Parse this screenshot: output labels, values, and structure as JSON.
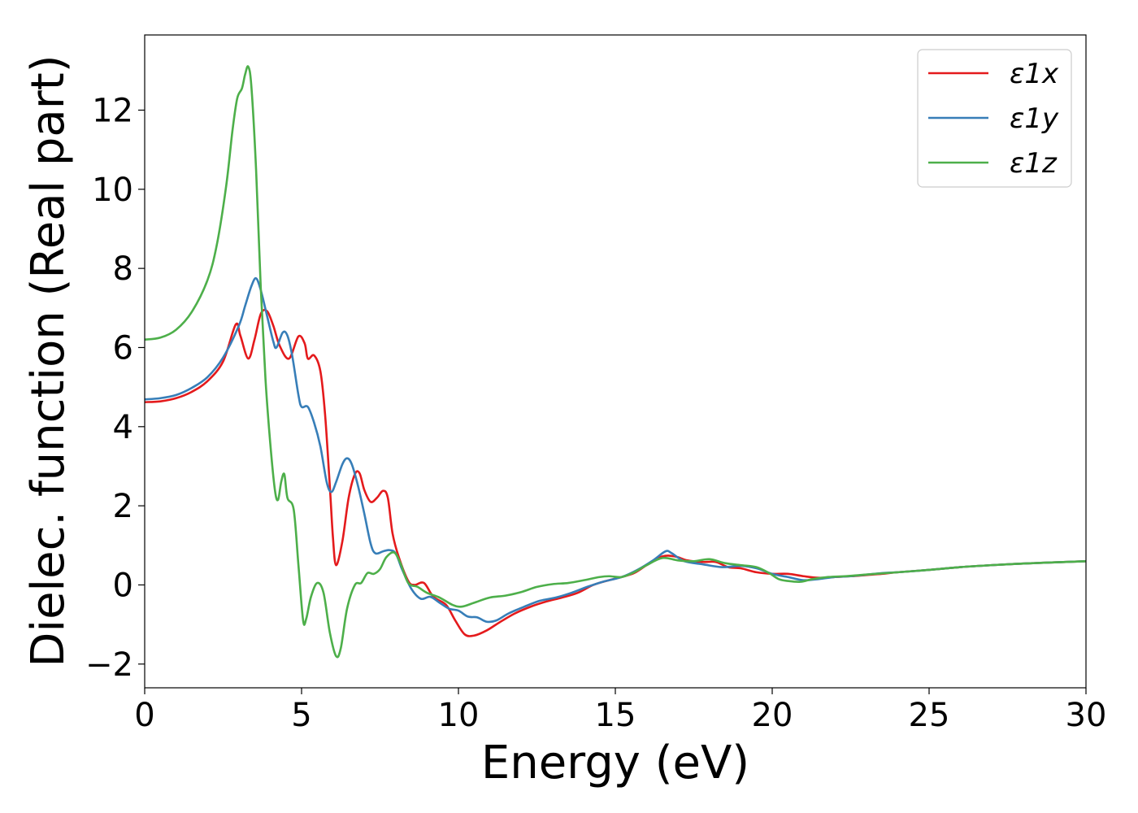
{
  "chart_data": {
    "type": "line",
    "title": "",
    "xlabel": "Energy (eV)",
    "ylabel": "Dielec. function (Real part)",
    "xlim": [
      0,
      30
    ],
    "ylim": [
      -2.6,
      13.9
    ],
    "xticks": [
      0,
      5,
      10,
      15,
      20,
      25,
      30
    ],
    "xtick_labels": [
      "0",
      "5",
      "10",
      "15",
      "20",
      "25",
      "30"
    ],
    "yticks": [
      -2,
      0,
      2,
      4,
      6,
      8,
      10,
      12
    ],
    "ytick_labels": [
      "−2",
      "0",
      "2",
      "4",
      "6",
      "8",
      "10",
      "12"
    ],
    "grid": false,
    "legend_position": "top-right",
    "series": [
      {
        "name": "ε1x",
        "color": "#e41a1c",
        "points": [
          [
            0,
            4.62
          ],
          [
            0.5,
            4.64
          ],
          [
            1.0,
            4.72
          ],
          [
            1.5,
            4.88
          ],
          [
            2.0,
            5.15
          ],
          [
            2.5,
            5.65
          ],
          [
            2.9,
            6.58
          ],
          [
            3.05,
            6.3
          ],
          [
            3.3,
            5.72
          ],
          [
            3.5,
            6.2
          ],
          [
            3.7,
            6.85
          ],
          [
            3.9,
            6.92
          ],
          [
            4.1,
            6.55
          ],
          [
            4.3,
            6.05
          ],
          [
            4.6,
            5.72
          ],
          [
            4.9,
            6.28
          ],
          [
            5.1,
            6.1
          ],
          [
            5.2,
            5.72
          ],
          [
            5.4,
            5.8
          ],
          [
            5.6,
            5.4
          ],
          [
            5.75,
            4.3
          ],
          [
            5.9,
            2.5
          ],
          [
            6.0,
            1.2
          ],
          [
            6.1,
            0.5
          ],
          [
            6.3,
            1.1
          ],
          [
            6.5,
            2.2
          ],
          [
            6.7,
            2.8
          ],
          [
            6.85,
            2.82
          ],
          [
            7.0,
            2.4
          ],
          [
            7.2,
            2.1
          ],
          [
            7.4,
            2.2
          ],
          [
            7.6,
            2.38
          ],
          [
            7.75,
            2.2
          ],
          [
            7.9,
            1.3
          ],
          [
            8.1,
            0.7
          ],
          [
            8.4,
            0.1
          ],
          [
            8.6,
            0.0
          ],
          [
            8.9,
            0.05
          ],
          [
            9.2,
            -0.3
          ],
          [
            9.6,
            -0.5
          ],
          [
            9.9,
            -0.9
          ],
          [
            10.2,
            -1.25
          ],
          [
            10.5,
            -1.28
          ],
          [
            10.9,
            -1.15
          ],
          [
            11.3,
            -0.95
          ],
          [
            11.8,
            -0.72
          ],
          [
            12.3,
            -0.55
          ],
          [
            12.8,
            -0.42
          ],
          [
            13.3,
            -0.32
          ],
          [
            13.8,
            -0.2
          ],
          [
            14.3,
            0.0
          ],
          [
            14.8,
            0.12
          ],
          [
            15.2,
            0.2
          ],
          [
            15.6,
            0.3
          ],
          [
            16.0,
            0.5
          ],
          [
            16.5,
            0.72
          ],
          [
            16.9,
            0.72
          ],
          [
            17.3,
            0.62
          ],
          [
            17.8,
            0.58
          ],
          [
            18.2,
            0.58
          ],
          [
            18.6,
            0.45
          ],
          [
            19.0,
            0.42
          ],
          [
            19.5,
            0.32
          ],
          [
            20.0,
            0.28
          ],
          [
            20.5,
            0.28
          ],
          [
            21.0,
            0.22
          ],
          [
            21.5,
            0.18
          ],
          [
            22.0,
            0.2
          ],
          [
            22.5,
            0.22
          ],
          [
            23.0,
            0.25
          ],
          [
            23.5,
            0.28
          ],
          [
            24.0,
            0.32
          ],
          [
            25.0,
            0.38
          ],
          [
            26.0,
            0.45
          ],
          [
            27.0,
            0.5
          ],
          [
            28.0,
            0.54
          ],
          [
            29.0,
            0.57
          ],
          [
            30.0,
            0.6
          ]
        ]
      },
      {
        "name": "ε1y",
        "color": "#377eb8",
        "points": [
          [
            0,
            4.69
          ],
          [
            0.5,
            4.72
          ],
          [
            1.0,
            4.8
          ],
          [
            1.5,
            4.98
          ],
          [
            2.0,
            5.25
          ],
          [
            2.5,
            5.75
          ],
          [
            3.0,
            6.55
          ],
          [
            3.2,
            7.05
          ],
          [
            3.4,
            7.55
          ],
          [
            3.55,
            7.75
          ],
          [
            3.7,
            7.45
          ],
          [
            3.9,
            6.8
          ],
          [
            4.1,
            6.15
          ],
          [
            4.2,
            6.0
          ],
          [
            4.4,
            6.38
          ],
          [
            4.55,
            6.3
          ],
          [
            4.7,
            5.8
          ],
          [
            4.9,
            4.8
          ],
          [
            5.0,
            4.5
          ],
          [
            5.2,
            4.5
          ],
          [
            5.4,
            4.1
          ],
          [
            5.6,
            3.5
          ],
          [
            5.8,
            2.6
          ],
          [
            5.95,
            2.35
          ],
          [
            6.1,
            2.6
          ],
          [
            6.3,
            3.05
          ],
          [
            6.45,
            3.2
          ],
          [
            6.6,
            3.05
          ],
          [
            6.8,
            2.5
          ],
          [
            7.0,
            1.8
          ],
          [
            7.2,
            1.05
          ],
          [
            7.35,
            0.8
          ],
          [
            7.6,
            0.85
          ],
          [
            7.8,
            0.88
          ],
          [
            8.0,
            0.8
          ],
          [
            8.2,
            0.4
          ],
          [
            8.5,
            -0.1
          ],
          [
            8.8,
            -0.35
          ],
          [
            9.1,
            -0.3
          ],
          [
            9.4,
            -0.45
          ],
          [
            9.7,
            -0.6
          ],
          [
            10.0,
            -0.65
          ],
          [
            10.3,
            -0.8
          ],
          [
            10.6,
            -0.82
          ],
          [
            10.9,
            -0.93
          ],
          [
            11.2,
            -0.9
          ],
          [
            11.6,
            -0.72
          ],
          [
            12.1,
            -0.55
          ],
          [
            12.6,
            -0.4
          ],
          [
            13.1,
            -0.32
          ],
          [
            13.6,
            -0.2
          ],
          [
            14.1,
            -0.05
          ],
          [
            14.6,
            0.08
          ],
          [
            15.2,
            0.2
          ],
          [
            15.7,
            0.38
          ],
          [
            16.2,
            0.62
          ],
          [
            16.6,
            0.85
          ],
          [
            16.8,
            0.8
          ],
          [
            17.2,
            0.6
          ],
          [
            17.8,
            0.52
          ],
          [
            18.4,
            0.45
          ],
          [
            19.0,
            0.48
          ],
          [
            19.5,
            0.42
          ],
          [
            20.0,
            0.28
          ],
          [
            20.5,
            0.2
          ],
          [
            21.0,
            0.12
          ],
          [
            21.5,
            0.15
          ],
          [
            22.0,
            0.2
          ],
          [
            22.5,
            0.22
          ],
          [
            23.0,
            0.26
          ],
          [
            23.5,
            0.3
          ],
          [
            24.0,
            0.32
          ],
          [
            25.0,
            0.38
          ],
          [
            26.0,
            0.45
          ],
          [
            27.0,
            0.5
          ],
          [
            28.0,
            0.54
          ],
          [
            29.0,
            0.57
          ],
          [
            30.0,
            0.6
          ]
        ]
      },
      {
        "name": "ε1z",
        "color": "#4daf4a",
        "points": [
          [
            0,
            6.2
          ],
          [
            0.5,
            6.25
          ],
          [
            1.0,
            6.45
          ],
          [
            1.5,
            6.9
          ],
          [
            2.0,
            7.7
          ],
          [
            2.3,
            8.6
          ],
          [
            2.6,
            10.1
          ],
          [
            2.8,
            11.5
          ],
          [
            2.95,
            12.3
          ],
          [
            3.1,
            12.55
          ],
          [
            3.2,
            12.9
          ],
          [
            3.3,
            13.1
          ],
          [
            3.4,
            12.6
          ],
          [
            3.55,
            10.5
          ],
          [
            3.7,
            7.5
          ],
          [
            3.85,
            5.2
          ],
          [
            4.0,
            3.6
          ],
          [
            4.15,
            2.4
          ],
          [
            4.25,
            2.15
          ],
          [
            4.35,
            2.6
          ],
          [
            4.45,
            2.8
          ],
          [
            4.55,
            2.2
          ],
          [
            4.75,
            1.9
          ],
          [
            4.9,
            0.5
          ],
          [
            5.05,
            -0.9
          ],
          [
            5.15,
            -0.85
          ],
          [
            5.3,
            -0.3
          ],
          [
            5.5,
            0.05
          ],
          [
            5.7,
            -0.2
          ],
          [
            5.9,
            -1.2
          ],
          [
            6.1,
            -1.8
          ],
          [
            6.25,
            -1.6
          ],
          [
            6.45,
            -0.6
          ],
          [
            6.7,
            0.0
          ],
          [
            6.9,
            0.05
          ],
          [
            7.1,
            0.3
          ],
          [
            7.3,
            0.28
          ],
          [
            7.5,
            0.4
          ],
          [
            7.7,
            0.7
          ],
          [
            7.95,
            0.82
          ],
          [
            8.15,
            0.55
          ],
          [
            8.4,
            0.05
          ],
          [
            8.7,
            -0.05
          ],
          [
            9.0,
            -0.2
          ],
          [
            9.4,
            -0.32
          ],
          [
            9.8,
            -0.5
          ],
          [
            10.1,
            -0.55
          ],
          [
            10.5,
            -0.45
          ],
          [
            11.0,
            -0.32
          ],
          [
            11.5,
            -0.27
          ],
          [
            12.0,
            -0.18
          ],
          [
            12.5,
            -0.05
          ],
          [
            13.0,
            0.02
          ],
          [
            13.5,
            0.05
          ],
          [
            14.0,
            0.12
          ],
          [
            14.5,
            0.2
          ],
          [
            14.8,
            0.22
          ],
          [
            15.2,
            0.2
          ],
          [
            15.6,
            0.32
          ],
          [
            16.0,
            0.5
          ],
          [
            16.5,
            0.68
          ],
          [
            17.0,
            0.62
          ],
          [
            17.5,
            0.6
          ],
          [
            18.0,
            0.65
          ],
          [
            18.5,
            0.55
          ],
          [
            19.0,
            0.5
          ],
          [
            19.5,
            0.45
          ],
          [
            19.9,
            0.3
          ],
          [
            20.2,
            0.15
          ],
          [
            20.5,
            0.1
          ],
          [
            20.9,
            0.08
          ],
          [
            21.3,
            0.15
          ],
          [
            21.8,
            0.2
          ],
          [
            22.3,
            0.22
          ],
          [
            22.8,
            0.25
          ],
          [
            23.3,
            0.28
          ],
          [
            24.0,
            0.32
          ],
          [
            25.0,
            0.38
          ],
          [
            26.0,
            0.45
          ],
          [
            27.0,
            0.5
          ],
          [
            28.0,
            0.54
          ],
          [
            29.0,
            0.57
          ],
          [
            30.0,
            0.6
          ]
        ]
      }
    ]
  }
}
